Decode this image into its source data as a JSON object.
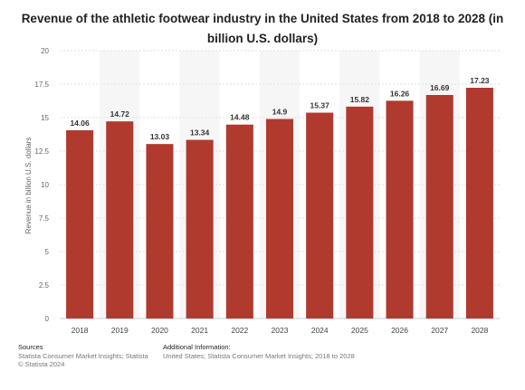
{
  "chart_data": {
    "type": "bar",
    "title": "Revenue of the athletic footwear industry in the United States from 2018 to 2028 (in billion U.S. dollars)",
    "xlabel": "",
    "ylabel": "Revenue in billion U.S. dollars",
    "categories": [
      "2018",
      "2019",
      "2020",
      "2021",
      "2022",
      "2023",
      "2024",
      "2025",
      "2026",
      "2027",
      "2028"
    ],
    "values": [
      14.06,
      14.72,
      13.03,
      13.34,
      14.48,
      14.9,
      15.37,
      15.82,
      16.26,
      16.69,
      17.23
    ],
    "value_labels": [
      "14.06",
      "14.72",
      "13.03",
      "13.34",
      "14.48",
      "14.9",
      "15.37",
      "15.82",
      "16.26",
      "16.69",
      "17.23"
    ],
    "ylim": [
      0,
      20
    ],
    "yticks": [
      0,
      2.5,
      5,
      7.5,
      10,
      12.5,
      15,
      17.5,
      20
    ],
    "ytick_labels": [
      "0",
      "2.5",
      "5",
      "7.5",
      "10",
      "12.5",
      "15",
      "17.5",
      "20"
    ],
    "grid": true,
    "bar_color": "#b03a2e"
  },
  "footer": {
    "sources_heading": "Sources",
    "sources_line1": "Statista Consumer Market Insights; Statista",
    "sources_line2": "© Statista 2024",
    "additional_heading": "Additional Information:",
    "additional_line1": "United States; Statista Consumer Market Insights; 2018 to 2028"
  }
}
